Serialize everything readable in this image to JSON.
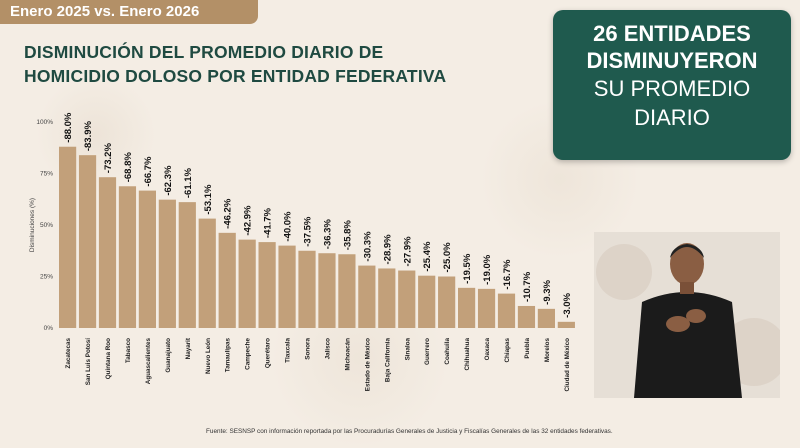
{
  "header": {
    "period_tag": "Enero 2025 vs. Enero 2026",
    "title_line1": "DISMINUCIÓN DEL PROMEDIO DIARIO DE",
    "title_line2": "HOMICIDIO DOLOSO POR ENTIDAD FEDERATIVA"
  },
  "summary": {
    "line1": "26 ENTIDADES",
    "line2": "DISMINUYERON",
    "line3": "SU PROMEDIO",
    "line4": "DIARIO"
  },
  "source": "Fuente: SESNSP con información reportada por las Procuradurías Generales de Justicia y Fiscalías Generales de las 32 entidades federativas.",
  "colors": {
    "bar": "#c2a07a",
    "title": "#1f4a41",
    "summary_bg": "#1f5a4e",
    "tag_bg": "#b39067"
  },
  "chart_data": {
    "type": "bar",
    "title": "DISMINUCIÓN DEL PROMEDIO DIARIO DE HOMICIDIO DOLOSO POR ENTIDAD FEDERATIVA",
    "ylabel": "Disminuciones (%)",
    "xlabel": "",
    "ylim": [
      0,
      100
    ],
    "yticks": [
      "0%",
      "25%",
      "50%",
      "75%",
      "100%"
    ],
    "grid": false,
    "categories": [
      "Zacatecas",
      "San Luis Potosí",
      "Quintana Roo",
      "Tabasco",
      "Aguascalientes",
      "Guanajuato",
      "Nayarit",
      "Nuevo León",
      "Tamaulipas",
      "Campeche",
      "Querétaro",
      "Tlaxcala",
      "Sonora",
      "Jalisco",
      "Michoacán",
      "Estado de México",
      "Baja California",
      "Sinaloa",
      "Guerrero",
      "Coahuila",
      "Chihuahua",
      "Oaxaca",
      "Chiapas",
      "Puebla",
      "Morelos",
      "Ciudad de México"
    ],
    "values": [
      88.0,
      83.9,
      73.2,
      68.8,
      66.7,
      62.3,
      61.1,
      53.1,
      46.2,
      42.9,
      41.7,
      40.0,
      37.5,
      36.3,
      35.8,
      30.3,
      28.9,
      27.9,
      25.4,
      25.0,
      19.5,
      19.0,
      16.7,
      10.7,
      9.3,
      3.0
    ],
    "value_labels": [
      "-88.0%",
      "-83.9%",
      "-73.2%",
      "-68.8%",
      "-66.7%",
      "-62.3%",
      "-61.1%",
      "-53.1%",
      "-46.2%",
      "-42.9%",
      "-41.7%",
      "-40.0%",
      "-37.5%",
      "-36.3%",
      "-35.8%",
      "-30.3%",
      "-28.9%",
      "-27.9%",
      "-25.4%",
      "-25.0%",
      "-19.5%",
      "-19.0%",
      "-16.7%",
      "-10.7%",
      "-9.3%",
      "-3.0%"
    ]
  }
}
